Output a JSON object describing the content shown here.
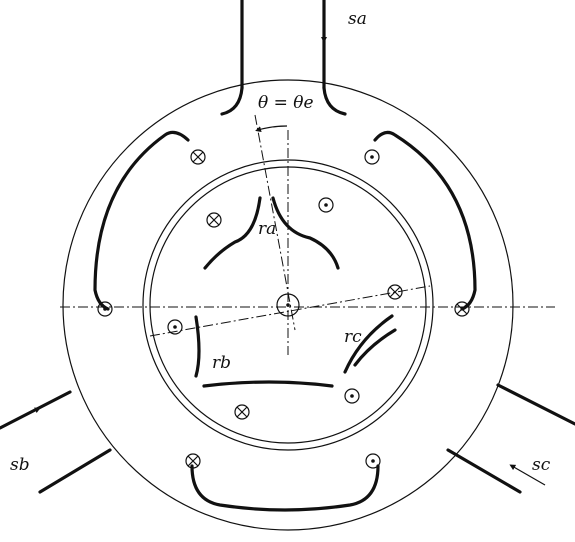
{
  "labels": {
    "sa": "sa",
    "sb": "sb",
    "sc": "sc",
    "ra": "ra",
    "rb": "rb",
    "rc": "rc",
    "angle": "θ = θe"
  }
}
